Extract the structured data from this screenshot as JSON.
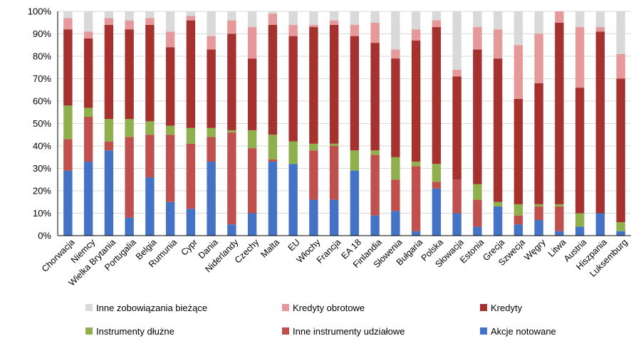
{
  "chart_data": {
    "type": "bar",
    "stacked": true,
    "percent": true,
    "categories": [
      "Chorwacja",
      "Niemcy",
      "Wielka Brytania",
      "Portugalia",
      "Belgia",
      "Rumunia",
      "Cypr",
      "Dania",
      "Niderlandy",
      "Czechy",
      "Malta",
      "EU",
      "Włochy",
      "Francja",
      "EA 18",
      "Finlandia",
      "Słowenia",
      "Bułgaria",
      "Polska",
      "Słowacja",
      "Estonia",
      "Grecja",
      "Szwecja",
      "Węgry",
      "Litwa",
      "Austria",
      "Hiszpania",
      "Luksemburg"
    ],
    "ylim": [
      0,
      100
    ],
    "yticks": [
      "0%",
      "10%",
      "20%",
      "30%",
      "40%",
      "50%",
      "60%",
      "70%",
      "80%",
      "90%",
      "100%"
    ],
    "grid": true,
    "legend_position": "bottom",
    "series": [
      {
        "name": "Akcje notowane",
        "color": "#4472c4",
        "values": [
          29,
          33,
          38,
          8,
          26,
          15,
          12,
          33,
          5,
          10,
          33,
          32,
          16,
          16,
          29,
          9,
          11,
          2,
          21,
          10,
          4,
          13,
          5,
          7,
          2,
          4,
          10,
          2
        ]
      },
      {
        "name": "Inne instrumenty udziałowe",
        "color": "#c0504d",
        "values": [
          14,
          20,
          4,
          36,
          19,
          30,
          29,
          11,
          41,
          29,
          1,
          0,
          22,
          24,
          0,
          27,
          14,
          29,
          3,
          15,
          12,
          0,
          4,
          6,
          11,
          0,
          0,
          0
        ]
      },
      {
        "name": "Instrumenty dłużne",
        "color": "#8fb04d",
        "values": [
          15,
          4,
          10,
          8,
          6,
          4,
          7,
          4,
          1,
          8,
          11,
          10,
          3,
          1,
          9,
          2,
          10,
          2,
          8,
          0,
          7,
          2,
          5,
          1,
          1,
          6,
          0,
          4
        ]
      },
      {
        "name": "Kredyty",
        "color": "#a5322f",
        "values": [
          34,
          31,
          42,
          40,
          43,
          35,
          48,
          35,
          43,
          32,
          49,
          47,
          52,
          53,
          51,
          48,
          44,
          54,
          61,
          46,
          60,
          64,
          47,
          54,
          81,
          56,
          81,
          64
        ]
      },
      {
        "name": "Kredyty obrotowe",
        "color": "#e6999a",
        "values": [
          5,
          3,
          3,
          4,
          3,
          7,
          2,
          6,
          6,
          14,
          5,
          5,
          1,
          2,
          5,
          9,
          4,
          5,
          3,
          3,
          10,
          13,
          24,
          22,
          5,
          27,
          2,
          11
        ]
      },
      {
        "name": "Inne zobowiązania bieżące",
        "color": "#d9d9d9",
        "values": [
          3,
          9,
          3,
          4,
          3,
          9,
          2,
          11,
          4,
          7,
          1,
          6,
          6,
          4,
          6,
          5,
          17,
          8,
          4,
          26,
          7,
          8,
          15,
          10,
          0,
          7,
          7,
          19
        ]
      }
    ],
    "legend": [
      {
        "label": "Inne zobowiązania bieżące",
        "color": "#d9d9d9"
      },
      {
        "label": "Kredyty obrotowe",
        "color": "#e6999a"
      },
      {
        "label": "Kredyty",
        "color": "#a5322f"
      },
      {
        "label": "Instrumenty dłużne",
        "color": "#8fb04d"
      },
      {
        "label": "Inne instrumenty udziałowe",
        "color": "#c0504d"
      },
      {
        "label": "Akcje notowane",
        "color": "#4472c4"
      }
    ]
  }
}
